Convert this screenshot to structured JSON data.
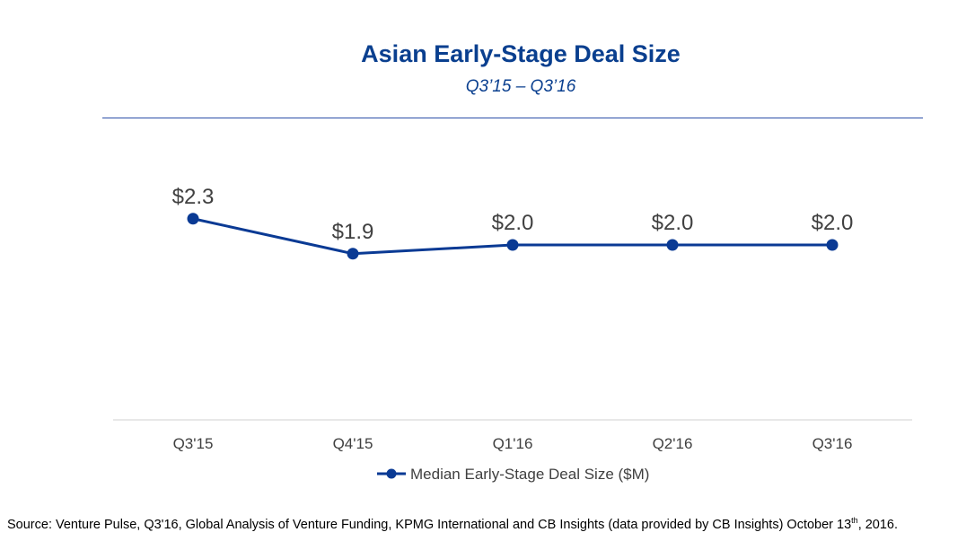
{
  "chart_data": {
    "type": "line",
    "title": "Asian Early-Stage Deal Size",
    "subtitle": "Q3’15 – Q3’16",
    "categories": [
      "Q3'15",
      "Q4'15",
      "Q1'16",
      "Q2'16",
      "Q3'16"
    ],
    "series": [
      {
        "name": "Median Early-Stage Deal Size ($M)",
        "values": [
          2.3,
          1.9,
          2.0,
          2.0,
          2.0
        ],
        "labels": [
          "$2.3",
          "$1.9",
          "$2.0",
          "$2.0",
          "$2.0"
        ],
        "color": "#0a3a94"
      }
    ],
    "ylim": [
      0,
      2.5
    ],
    "xlabel": "",
    "ylabel": "",
    "grid": false,
    "legend_position": "bottom-center"
  },
  "source": {
    "prefix": "Source: Venture Pulse, Q3'16, Global Analysis of Venture Funding, KPMG International and CB Insights (data provided by CB Insights) October 13",
    "sup": "th",
    "suffix": ", 2016."
  },
  "colors": {
    "accent": "#0a3f8f",
    "axis": "#d9d9d9",
    "label": "#404040"
  }
}
